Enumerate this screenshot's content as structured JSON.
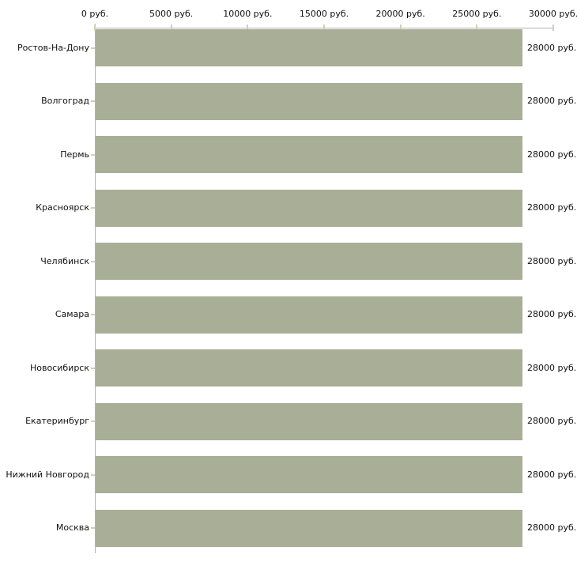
{
  "chart_data": {
    "type": "bar",
    "orientation": "horizontal",
    "title": "",
    "xlabel": "",
    "ylabel": "",
    "unit": "руб.",
    "categories": [
      "Ростов-На-Дону",
      "Волгоград",
      "Пермь",
      "Красноярск",
      "Челябинск",
      "Самара",
      "Новосибирск",
      "Екатеринбург",
      "Нижний Новгород",
      "Москва"
    ],
    "values": [
      28000,
      28000,
      28000,
      28000,
      28000,
      28000,
      28000,
      28000,
      28000,
      28000
    ],
    "value_labels": [
      "28000 руб.",
      "28000 руб.",
      "28000 руб.",
      "28000 руб.",
      "28000 руб.",
      "28000 руб.",
      "28000 руб.",
      "28000 руб.",
      "28000 руб.",
      "28000 руб."
    ],
    "xlim": [
      0,
      30000
    ],
    "x_ticks": [
      0,
      5000,
      10000,
      15000,
      20000,
      25000,
      30000
    ],
    "x_tick_labels": [
      "0 руб.",
      "5000 руб.",
      "10000 руб.",
      "15000 руб.",
      "20000 руб.",
      "25000 руб.",
      "30000 руб."
    ],
    "grid": false,
    "legend": false,
    "colors": {
      "bar": "#a9ae96",
      "axis_line": "#b3b3b3",
      "tick_mark": "#cfcfb6",
      "text": "#111111",
      "background": "#ffffff"
    }
  }
}
